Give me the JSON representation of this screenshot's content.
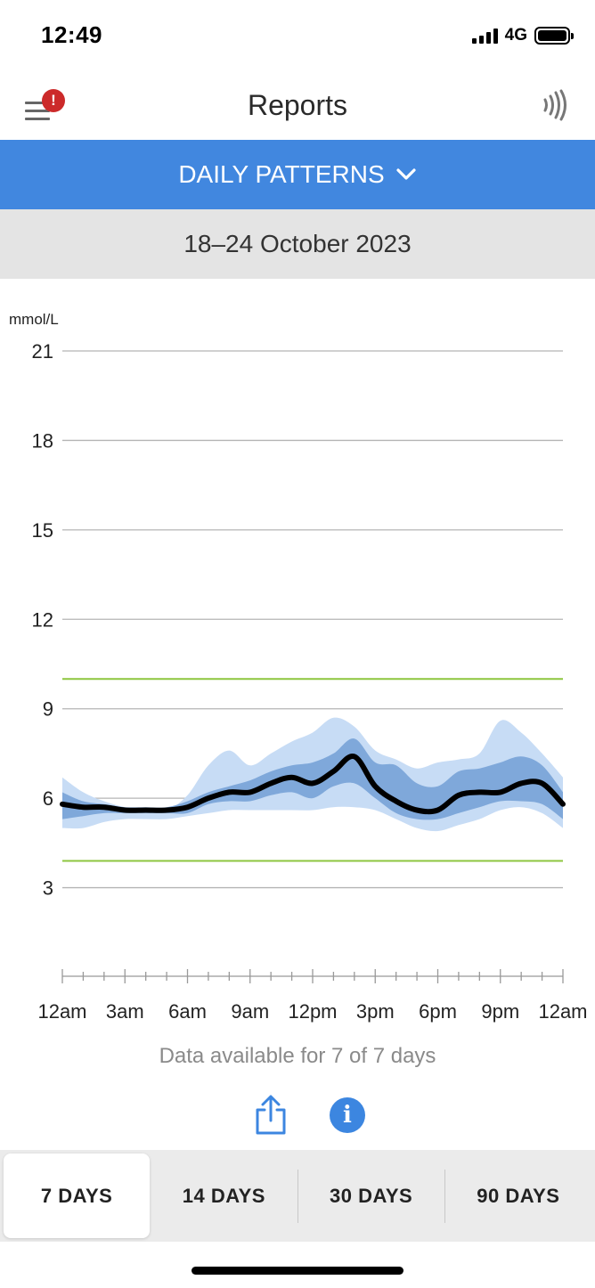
{
  "status": {
    "time": "12:49",
    "network": "4G"
  },
  "nav": {
    "title": "Reports",
    "alert_badge": "!",
    "menu_icon": "hamburger-menu-icon",
    "scan_icon": "nfc-scan-icon"
  },
  "report_type": {
    "label": "DAILY PATTERNS"
  },
  "date_range": "18–24 October 2023",
  "chart_data": {
    "type": "area",
    "ylabel": "mmol/L",
    "ylim": [
      0,
      21
    ],
    "yticks": [
      21,
      18,
      15,
      12,
      9,
      6,
      3
    ],
    "xlim": [
      0,
      24
    ],
    "xticks": [
      {
        "v": 0,
        "label": "12am"
      },
      {
        "v": 3,
        "label": "3am"
      },
      {
        "v": 6,
        "label": "6am"
      },
      {
        "v": 9,
        "label": "9am"
      },
      {
        "v": 12,
        "label": "12pm"
      },
      {
        "v": 15,
        "label": "3pm"
      },
      {
        "v": 18,
        "label": "6pm"
      },
      {
        "v": 21,
        "label": "9pm"
      },
      {
        "v": 24,
        "label": "12am"
      }
    ],
    "target_range": [
      3.9,
      10.0
    ],
    "grid": true,
    "colors": {
      "band_outer": "#c7dcf5",
      "band_inner": "#7fa8da",
      "median": "#000000",
      "target_line": "#8dc63f",
      "grid": "#b5b5b5"
    },
    "series": [
      {
        "x": [
          0,
          1,
          2,
          3,
          4,
          5,
          6,
          7,
          8,
          9,
          10,
          11,
          12,
          13,
          14,
          15,
          16,
          17,
          18,
          19,
          20,
          21,
          22,
          23,
          24
        ],
        "values": [
          5.0,
          5.0,
          5.2,
          5.3,
          5.3,
          5.3,
          5.4,
          5.5,
          5.6,
          5.6,
          5.6,
          5.6,
          5.6,
          5.7,
          5.7,
          5.6,
          5.3,
          5.0,
          4.9,
          5.1,
          5.3,
          5.6,
          5.7,
          5.5,
          5.0
        ]
      },
      {
        "x": [
          0,
          1,
          2,
          3,
          4,
          5,
          6,
          7,
          8,
          9,
          10,
          11,
          12,
          13,
          14,
          15,
          16,
          17,
          18,
          19,
          20,
          21,
          22,
          23,
          24
        ],
        "values": [
          5.3,
          5.4,
          5.5,
          5.5,
          5.5,
          5.5,
          5.5,
          5.8,
          5.9,
          5.9,
          6.1,
          6.2,
          6.0,
          6.4,
          6.5,
          6.0,
          5.5,
          5.3,
          5.3,
          5.5,
          5.7,
          5.9,
          5.9,
          5.8,
          5.3
        ]
      },
      {
        "x": [
          0,
          1,
          2,
          3,
          4,
          5,
          6,
          7,
          8,
          9,
          10,
          11,
          12,
          13,
          14,
          15,
          16,
          17,
          18,
          19,
          20,
          21,
          22,
          23,
          24
        ],
        "values": [
          5.8,
          5.7,
          5.7,
          5.6,
          5.6,
          5.6,
          5.7,
          6.0,
          6.2,
          6.2,
          6.5,
          6.7,
          6.5,
          6.9,
          7.4,
          6.4,
          5.9,
          5.6,
          5.6,
          6.1,
          6.2,
          6.2,
          6.5,
          6.5,
          5.8
        ]
      },
      {
        "x": [
          0,
          1,
          2,
          3,
          4,
          5,
          6,
          7,
          8,
          9,
          10,
          11,
          12,
          13,
          14,
          15,
          16,
          17,
          18,
          19,
          20,
          21,
          22,
          23,
          24
        ],
        "values": [
          6.2,
          5.9,
          5.8,
          5.7,
          5.7,
          5.7,
          5.9,
          6.2,
          6.4,
          6.6,
          6.9,
          7.1,
          7.2,
          7.5,
          8.0,
          7.2,
          7.1,
          6.5,
          6.4,
          6.9,
          7.0,
          7.2,
          7.4,
          7.1,
          6.2
        ]
      },
      {
        "x": [
          0,
          1,
          2,
          3,
          4,
          5,
          6,
          7,
          8,
          9,
          10,
          11,
          12,
          13,
          14,
          15,
          16,
          17,
          18,
          19,
          20,
          21,
          22,
          23,
          24
        ],
        "values": [
          6.7,
          6.2,
          5.9,
          5.7,
          5.6,
          5.6,
          6.1,
          7.1,
          7.6,
          7.1,
          7.5,
          7.9,
          8.2,
          8.7,
          8.4,
          7.6,
          7.3,
          7.0,
          7.2,
          7.3,
          7.5,
          8.6,
          8.2,
          7.5,
          6.7
        ]
      }
    ]
  },
  "data_note": "Data available for 7 of 7 days",
  "actions": {
    "share_icon": "share-icon",
    "info_icon": "info-icon",
    "info_glyph": "i"
  },
  "periods": [
    {
      "label": "7 DAYS",
      "active": true
    },
    {
      "label": "14 DAYS",
      "active": false
    },
    {
      "label": "30 DAYS",
      "active": false
    },
    {
      "label": "90 DAYS",
      "active": false
    }
  ]
}
